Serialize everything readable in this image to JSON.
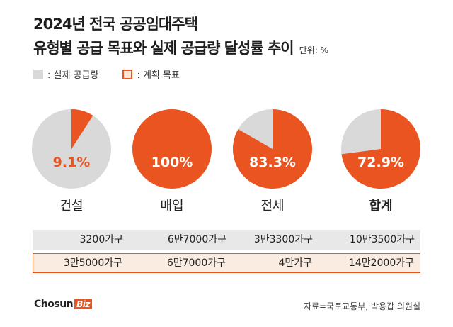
{
  "header": {
    "title_line1": "2024년 전국 공공임대주택",
    "title_line2": "유형별 공급 목표와 실제 공급량 달성률 추이",
    "unit": "단위: %"
  },
  "legend": {
    "actual": ": 실제 공급량",
    "plan": ": 계획 목표"
  },
  "colors": {
    "accent": "#e95420",
    "gray": "#d9d9d9",
    "plan_bg": "#fbece2",
    "actual_bg": "#e8e8e8"
  },
  "chart_data": {
    "type": "pie",
    "categories": [
      "건설",
      "매입",
      "전세",
      "합계"
    ],
    "values": [
      9.1,
      100,
      83.3,
      72.9
    ],
    "value_labels": [
      "9.1%",
      "100%",
      "83.3%",
      "72.9%"
    ],
    "actual_supply": [
      "3200가구",
      "6만7000가구",
      "3만3300가구",
      "10만3500가구"
    ],
    "planned_target": [
      "3만5000가구",
      "6만7000가구",
      "4만가구",
      "14만2000가구"
    ]
  },
  "footer": {
    "brand": "Chosun",
    "brand_suffix": "Biz",
    "source": "자료=국토교통부, 박용갑 의원실"
  }
}
